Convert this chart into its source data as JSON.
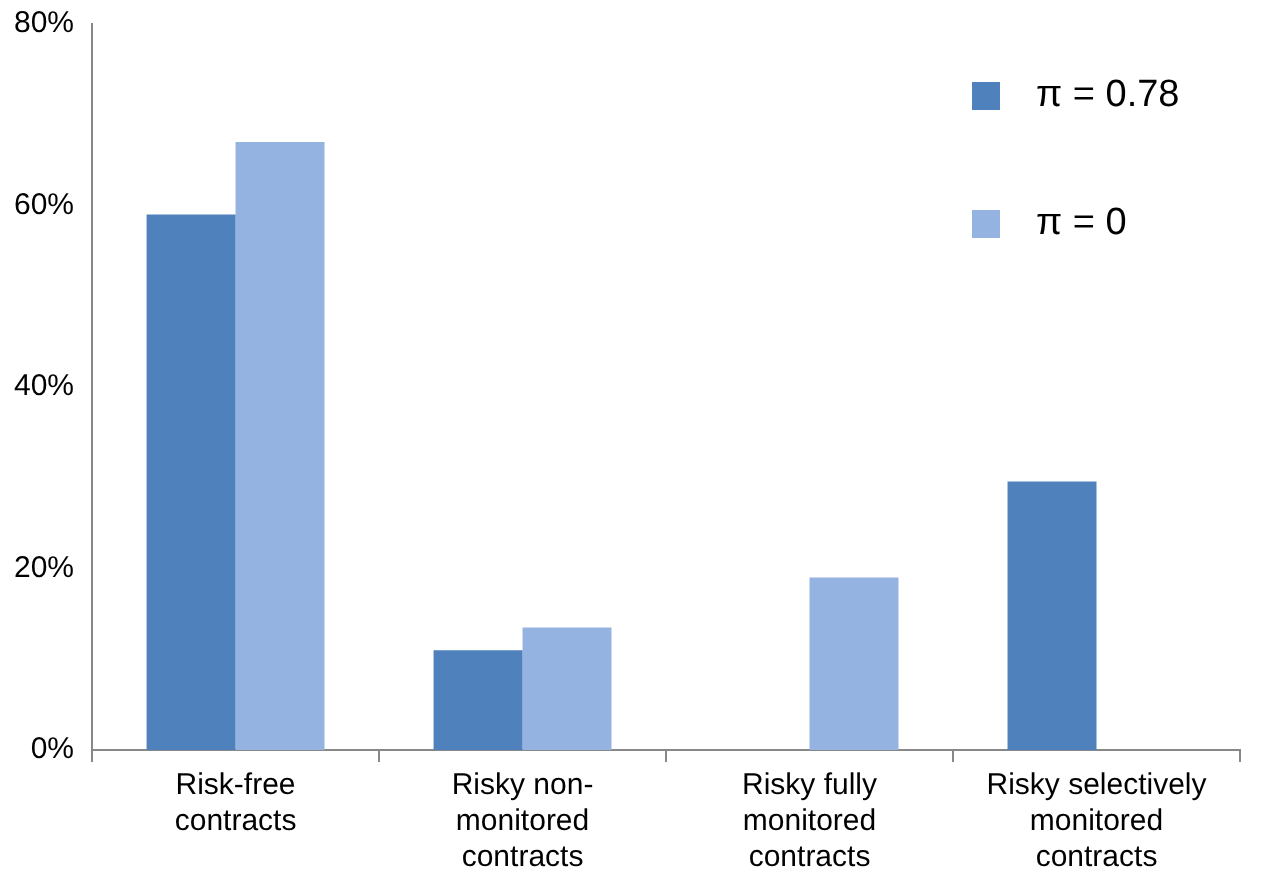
{
  "chart_data": {
    "type": "bar",
    "categories": [
      "Risk-free\ncontracts",
      "Risky non-\nmonitored\ncontracts",
      "Risky fully\nmonitored\ncontracts",
      "Risky selectively\nmonitored\ncontracts"
    ],
    "series": [
      {
        "name": "π =  0.78",
        "color": "#4f81bd",
        "values": [
          59,
          11,
          0,
          29.6
        ]
      },
      {
        "name": "π =  0",
        "color": "#95b3e0",
        "values": [
          67,
          13.5,
          19,
          0
        ]
      }
    ],
    "ylim": [
      0,
      80
    ],
    "yticks": [
      {
        "value": 0,
        "label": "0%"
      },
      {
        "value": 20,
        "label": "20%"
      },
      {
        "value": 40,
        "label": "40%"
      },
      {
        "value": 60,
        "label": "60%"
      },
      {
        "value": 80,
        "label": "80%"
      }
    ],
    "grid": false,
    "legend": "top right"
  }
}
